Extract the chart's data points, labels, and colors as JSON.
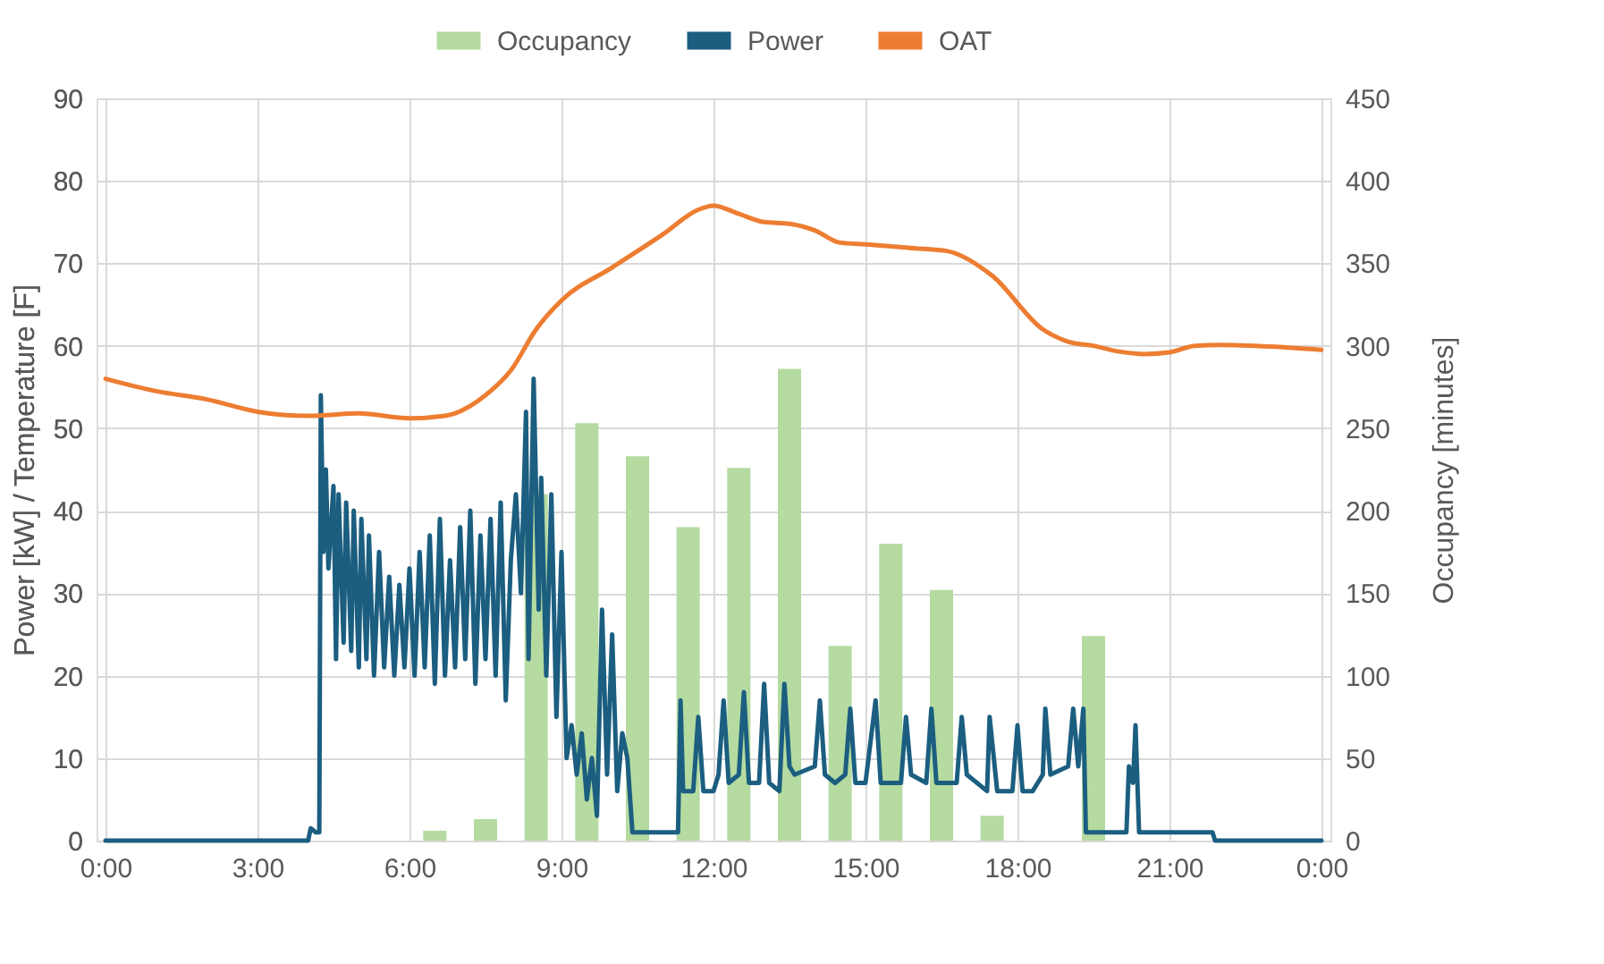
{
  "chart_data": {
    "type": "line",
    "ylabel": "Power [kW] / Temperature [F]",
    "y2label": "Occupancy [minutes]",
    "legend": "top",
    "grid": true,
    "xlim": [
      0,
      24
    ],
    "xticks": [
      {
        "value": 0,
        "label": "0:00"
      },
      {
        "value": 3,
        "label": "3:00"
      },
      {
        "value": 6,
        "label": "6:00"
      },
      {
        "value": 9,
        "label": "9:00"
      },
      {
        "value": 12,
        "label": "12:00"
      },
      {
        "value": 15,
        "label": "15:00"
      },
      {
        "value": 18,
        "label": "18:00"
      },
      {
        "value": 21,
        "label": "21:00"
      },
      {
        "value": 24,
        "label": "0:00"
      }
    ],
    "ylim": [
      0,
      90
    ],
    "yticks": [
      0,
      10,
      20,
      30,
      40,
      50,
      60,
      70,
      80,
      90
    ],
    "y2lim": [
      0,
      450
    ],
    "y2ticks": [
      0,
      50,
      100,
      150,
      200,
      250,
      300,
      350,
      400,
      450
    ],
    "series": [
      {
        "name": "Occupancy",
        "type": "bar",
        "axis": "y2",
        "color": "#b5dba0",
        "x": [
          6.5,
          7.5,
          8.5,
          9.5,
          10.5,
          11.5,
          12.5,
          13.5,
          14.5,
          15.5,
          16.5,
          17.5,
          19.5
        ],
        "values": [
          6,
          13,
          210,
          253,
          233,
          190,
          226,
          286,
          118,
          180,
          152,
          15,
          124
        ]
      },
      {
        "name": "Power",
        "color": "#1b5e80",
        "x": [
          0,
          4.0,
          4.05,
          4.15,
          4.22,
          4.25,
          4.3,
          4.35,
          4.4,
          4.5,
          4.55,
          4.6,
          4.7,
          4.75,
          4.85,
          4.9,
          5.0,
          5.05,
          5.15,
          5.2,
          5.3,
          5.4,
          5.5,
          5.6,
          5.7,
          5.8,
          5.9,
          6.0,
          6.1,
          6.2,
          6.3,
          6.4,
          6.5,
          6.6,
          6.7,
          6.8,
          6.9,
          7.0,
          7.1,
          7.2,
          7.3,
          7.4,
          7.5,
          7.6,
          7.7,
          7.8,
          7.9,
          8.0,
          8.1,
          8.2,
          8.3,
          8.35,
          8.45,
          8.55,
          8.6,
          8.7,
          8.8,
          8.9,
          9.0,
          9.1,
          9.2,
          9.3,
          9.4,
          9.5,
          9.6,
          9.7,
          9.8,
          9.9,
          10.0,
          10.1,
          10.2,
          10.3,
          10.4,
          11.3,
          11.35,
          11.4,
          11.6,
          11.7,
          11.8,
          12.0,
          12.1,
          12.2,
          12.3,
          12.5,
          12.6,
          12.7,
          12.9,
          13.0,
          13.1,
          13.3,
          13.4,
          13.5,
          13.6,
          14.0,
          14.1,
          14.2,
          14.4,
          14.6,
          14.7,
          14.8,
          15.0,
          15.2,
          15.3,
          15.7,
          15.8,
          15.9,
          16.2,
          16.3,
          16.4,
          16.8,
          16.9,
          17.0,
          17.4,
          17.45,
          17.6,
          17.9,
          18.0,
          18.1,
          18.3,
          18.5,
          18.55,
          18.65,
          19.0,
          19.1,
          19.2,
          19.3,
          19.35,
          20.15,
          20.2,
          20.28,
          20.33,
          20.4,
          21.85,
          21.9,
          24
        ],
        "values": [
          0,
          0,
          1.5,
          1,
          1,
          54,
          35,
          45,
          33,
          43,
          22,
          42,
          24,
          41,
          23,
          40,
          21,
          39,
          22,
          37,
          20,
          35,
          21,
          32,
          20,
          31,
          21,
          33,
          20,
          35,
          21,
          37,
          19,
          39,
          20,
          34,
          21,
          38,
          22,
          40,
          19,
          37,
          22,
          39,
          20,
          41,
          17,
          34,
          42,
          30,
          52,
          22,
          56,
          28,
          44,
          20,
          42,
          15,
          35,
          10,
          14,
          8,
          13,
          5,
          10,
          3,
          28,
          8,
          25,
          6,
          13,
          10,
          1,
          1,
          17,
          6,
          6,
          15,
          6,
          6,
          8,
          17,
          7,
          8,
          18,
          7,
          7,
          19,
          7,
          6,
          19,
          9,
          8,
          9,
          17,
          8,
          7,
          8,
          16,
          7,
          7,
          17,
          7,
          7,
          15,
          8,
          7,
          16,
          7,
          7,
          15,
          8,
          6,
          15,
          6,
          6,
          14,
          6,
          6,
          8,
          16,
          8,
          9,
          16,
          9,
          16,
          1,
          1,
          9,
          7,
          14,
          1,
          1,
          0,
          0
        ]
      },
      {
        "name": "OAT",
        "color": "#ed7d31",
        "x": [
          0,
          1,
          2,
          3,
          4,
          5,
          6,
          6.7,
          7.5,
          8,
          8.5,
          9,
          10,
          11,
          11.7,
          12,
          12.5,
          13,
          13.5,
          14,
          14.5,
          15,
          16,
          16.6,
          17.5,
          18.5,
          19,
          19.5,
          20,
          20.5,
          21,
          21.5,
          22,
          23,
          24
        ],
        "values": [
          56,
          54.5,
          53.5,
          52,
          51.5,
          51.8,
          51.2,
          51.5,
          54,
          57,
          62,
          65.5,
          69.5,
          73.5,
          76.5,
          77,
          76,
          75,
          74.8,
          74,
          72.5,
          72.3,
          71.8,
          71.5,
          68.5,
          62,
          60.5,
          60,
          59.3,
          59,
          59.2,
          60,
          60.1,
          59.9,
          59.5
        ]
      }
    ]
  }
}
